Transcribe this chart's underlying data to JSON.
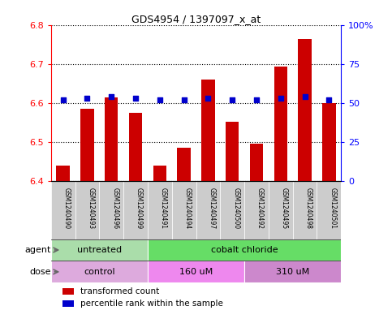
{
  "title": "GDS4954 / 1397097_x_at",
  "samples": [
    "GSM1240490",
    "GSM1240493",
    "GSM1240496",
    "GSM1240499",
    "GSM1240491",
    "GSM1240494",
    "GSM1240497",
    "GSM1240500",
    "GSM1240492",
    "GSM1240495",
    "GSM1240498",
    "GSM1240501"
  ],
  "transformed_counts": [
    6.44,
    6.585,
    6.615,
    6.575,
    6.44,
    6.485,
    6.66,
    6.553,
    6.495,
    6.695,
    6.765,
    6.6
  ],
  "percentile_ranks": [
    52,
    53,
    54,
    53,
    52,
    52,
    53,
    52,
    52,
    53,
    54,
    52
  ],
  "ylim_left": [
    6.4,
    6.8
  ],
  "ylim_right": [
    0,
    100
  ],
  "yticks_left": [
    6.4,
    6.5,
    6.6,
    6.7,
    6.8
  ],
  "yticks_right": [
    0,
    25,
    50,
    75,
    100
  ],
  "ytick_labels_right": [
    "0",
    "25",
    "50",
    "75",
    "100%"
  ],
  "agent_groups": [
    {
      "label": "untreated",
      "start": 0,
      "end": 4,
      "color": "#aaddaa"
    },
    {
      "label": "cobalt chloride",
      "start": 4,
      "end": 12,
      "color": "#66dd66"
    }
  ],
  "dose_groups": [
    {
      "label": "control",
      "start": 0,
      "end": 4,
      "color": "#ddaadd"
    },
    {
      "label": "160 uM",
      "start": 4,
      "end": 8,
      "color": "#ee88ee"
    },
    {
      "label": "310 uM",
      "start": 8,
      "end": 12,
      "color": "#cc88cc"
    }
  ],
  "bar_color": "#cc0000",
  "percentile_color": "#0000cc",
  "bar_bottom": 6.4,
  "bar_width": 0.55,
  "legend_items": [
    {
      "label": "transformed count",
      "color": "#cc0000"
    },
    {
      "label": "percentile rank within the sample",
      "color": "#0000cc"
    }
  ],
  "agent_label": "agent",
  "dose_label": "dose",
  "label_color": "#888888"
}
